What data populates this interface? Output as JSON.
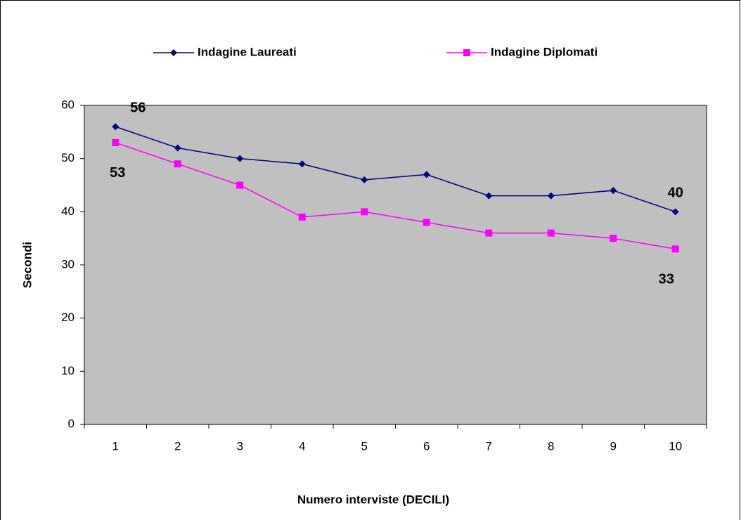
{
  "chart_data": {
    "type": "line",
    "x_label": "Numero interviste (DECILI)",
    "y_label": "Secondi",
    "categories": [
      1,
      2,
      3,
      4,
      5,
      6,
      7,
      8,
      9,
      10
    ],
    "series": [
      {
        "name": "Indagine Laureati",
        "color": "#000080",
        "marker": "diamond",
        "labeled_indices": [
          0,
          9
        ],
        "values": [
          56,
          52,
          50,
          49,
          46,
          47,
          43,
          43,
          44,
          40
        ]
      },
      {
        "name": "Indagine Diplomati",
        "color": "#ff00ff",
        "marker": "square",
        "labeled_indices": [
          0,
          9
        ],
        "values": [
          53,
          49,
          45,
          39,
          40,
          38,
          36,
          36,
          35,
          33
        ]
      }
    ],
    "ylim": [
      0,
      60
    ],
    "yticks": [
      0,
      10,
      20,
      30,
      40,
      50,
      60
    ],
    "grid": false,
    "legend": "top",
    "plot_background": "#c0c0c0"
  }
}
